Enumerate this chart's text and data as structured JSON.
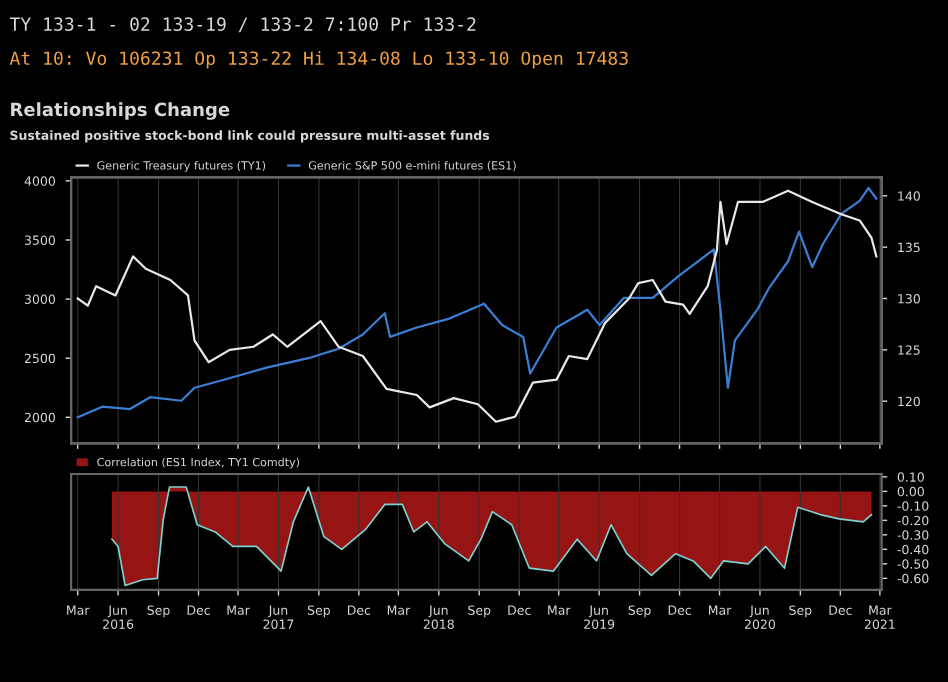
{
  "chart_data": [
    {
      "type": "line",
      "title": "Relationships Change",
      "subtitle": "Sustained positive stock-bond link could pressure multi-asset funds",
      "annotations": [
        "TY 133-1 - 02 133-19 / 133-2 7:100 Pr 133-2",
        "At 10: Vo 106231 Op 133-22 Hi 134-08 Lo 133-10 Open 17483"
      ],
      "xlim": [
        "2016-02-15",
        "2021-03-05"
      ],
      "xticks": [
        "2016-03-01",
        "2016-06-01",
        "2016-09-01",
        "2016-12-01",
        "2017-03-01",
        "2017-06-01",
        "2017-09-01",
        "2017-12-01",
        "2018-03-01",
        "2018-06-01",
        "2018-09-01",
        "2018-12-01",
        "2019-03-01",
        "2019-06-01",
        "2019-09-01",
        "2019-12-01",
        "2020-03-01",
        "2020-06-01",
        "2020-09-01",
        "2020-12-01",
        "2021-03-01"
      ],
      "ylim": [
        1780,
        4030
      ],
      "yticks": [
        2000,
        2500,
        3000,
        3500,
        4000
      ],
      "y2lim": [
        115.9,
        141.8
      ],
      "y2ticks": [
        120,
        125,
        130,
        135,
        140
      ],
      "tick_labels": "y",
      "grid": "x",
      "legend": "top left",
      "series": [
        {
          "name": "Generic Treasury futures (TY1)",
          "color": "#e8e8e8",
          "axis": "y2",
          "x": [
            "2016-03-01",
            "2016-03-24",
            "2016-04-12",
            "2016-05-26",
            "2016-07-05",
            "2016-08-03",
            "2016-09-28",
            "2016-11-07",
            "2016-11-22",
            "2016-12-24",
            "2017-02-10",
            "2017-04-05",
            "2017-05-19",
            "2017-06-21",
            "2017-09-05",
            "2017-10-16",
            "2017-12-10",
            "2018-02-02",
            "2018-04-12",
            "2018-05-11",
            "2018-07-05",
            "2018-08-29",
            "2018-10-09",
            "2018-11-22",
            "2019-01-01",
            "2019-02-24",
            "2019-03-24",
            "2019-05-05",
            "2019-06-14",
            "2019-08-08",
            "2019-08-29",
            "2019-10-01",
            "2019-10-30",
            "2019-12-09",
            "2019-12-24",
            "2020-02-03",
            "2020-02-24",
            "2020-03-03",
            "2020-03-17",
            "2020-04-12",
            "2020-06-07",
            "2020-08-04",
            "2020-09-28",
            "2020-12-03",
            "2021-01-14",
            "2021-02-10",
            "2021-02-21"
          ],
          "values": [
            130,
            129.3,
            131.2,
            130.3,
            134.1,
            132.9,
            131.8,
            130.3,
            125.9,
            123.8,
            125.0,
            125.3,
            126.5,
            125.3,
            127.8,
            125.3,
            124.4,
            121.2,
            120.6,
            119.4,
            120.3,
            119.7,
            118,
            118.5,
            121.8,
            122.1,
            124.4,
            124.1,
            127.6,
            130,
            131.5,
            131.8,
            129.7,
            129.4,
            128.5,
            131.2,
            134.7,
            139.4,
            135.3,
            139.4,
            139.4,
            140.5,
            139.4,
            138.2,
            137.6,
            135.9,
            134.1
          ]
        },
        {
          "name": "Generic S&P 500 e-mini futures (ES1)",
          "color": "#3b7fd4",
          "axis": "y",
          "x": [
            "2016-03-01",
            "2016-04-26",
            "2016-06-28",
            "2016-08-13",
            "2016-10-23",
            "2016-11-22",
            "2017-01-30",
            "2017-05-05",
            "2017-08-08",
            "2017-10-16",
            "2017-12-10",
            "2018-01-29",
            "2018-02-10",
            "2018-04-12",
            "2018-06-21",
            "2018-09-12",
            "2018-10-23",
            "2018-12-10",
            "2018-12-26",
            "2019-02-24",
            "2019-05-05",
            "2019-06-02",
            "2019-07-27",
            "2019-10-01",
            "2019-11-27",
            "2020-02-17",
            "2020-03-03",
            "2020-03-20",
            "2020-04-05",
            "2020-05-26",
            "2020-06-21",
            "2020-08-04",
            "2020-08-29",
            "2020-09-28",
            "2020-10-23",
            "2020-12-03",
            "2021-01-14",
            "2021-02-03",
            "2021-02-21"
          ],
          "values": [
            2000,
            2090,
            2070,
            2170,
            2140,
            2250,
            2320,
            2420,
            2500,
            2580,
            2700,
            2880,
            2680,
            2760,
            2830,
            2960,
            2780,
            2680,
            2370,
            2760,
            2910,
            2780,
            3010,
            3010,
            3190,
            3420,
            2910,
            2250,
            2650,
            2910,
            3090,
            3320,
            3570,
            3270,
            3470,
            3720,
            3830,
            3940,
            3850
          ]
        }
      ]
    },
    {
      "type": "area",
      "xlim": [
        "2016-02-15",
        "2021-03-05"
      ],
      "xticks": [
        {
          "value": "2016-03-01",
          "label": "Mar"
        },
        {
          "value": "2016-06-01",
          "label": "Jun\n2016"
        },
        {
          "value": "2016-09-01",
          "label": "Sep"
        },
        {
          "value": "2016-12-01",
          "label": "Dec"
        },
        {
          "value": "2017-03-01",
          "label": "Mar"
        },
        {
          "value": "2017-06-01",
          "label": "Jun\n2017"
        },
        {
          "value": "2017-09-01",
          "label": "Sep"
        },
        {
          "value": "2017-12-01",
          "label": "Dec"
        },
        {
          "value": "2018-03-01",
          "label": "Mar"
        },
        {
          "value": "2018-06-01",
          "label": "Jun\n2018"
        },
        {
          "value": "2018-09-01",
          "label": "Sep"
        },
        {
          "value": "2018-12-01",
          "label": "Dec"
        },
        {
          "value": "2019-03-01",
          "label": "Mar"
        },
        {
          "value": "2019-06-01",
          "label": "Jun\n2019"
        },
        {
          "value": "2019-09-01",
          "label": "Sep"
        },
        {
          "value": "2019-12-01",
          "label": "Dec"
        },
        {
          "value": "2020-03-01",
          "label": "Mar"
        },
        {
          "value": "2020-06-01",
          "label": "Jun\n2020"
        },
        {
          "value": "2020-09-01",
          "label": "Sep"
        },
        {
          "value": "2020-12-01",
          "label": "Dec"
        },
        {
          "value": "2021-03-01",
          "label": "Mar\n2021"
        }
      ],
      "ylim": [
        -0.68,
        0.12
      ],
      "yticks": [
        {
          "value": 0.1,
          "label": "0.10"
        },
        {
          "value": 0,
          "label": "0.00"
        },
        {
          "value": -0.1,
          "label": "-0.10"
        },
        {
          "value": -0.2,
          "label": "-0.20"
        },
        {
          "value": -0.3,
          "label": "-0.30"
        },
        {
          "value": -0.4,
          "label": "-0.40"
        },
        {
          "value": -0.5,
          "label": "-0.50"
        },
        {
          "value": -0.6,
          "label": "-0.60"
        }
      ],
      "grid": "x",
      "legend": "top left",
      "series": [
        {
          "name": "Correlation (ES1 Index, TY1 Comdty)",
          "color": "#b01818",
          "x": [
            "2016-05-18",
            "2016-06-01",
            "2016-06-17",
            "2016-07-27",
            "2016-08-29",
            "2016-09-12",
            "2016-09-26",
            "2016-11-03",
            "2016-11-28",
            "2017-01-08",
            "2017-02-17",
            "2017-04-12",
            "2017-06-07",
            "2017-07-05",
            "2017-08-08",
            "2017-09-12",
            "2017-10-23",
            "2017-12-17",
            "2018-01-29",
            "2018-03-10",
            "2018-04-05",
            "2018-05-05",
            "2018-06-14",
            "2018-08-08",
            "2018-09-05",
            "2018-10-01",
            "2018-11-14",
            "2018-12-24",
            "2019-02-17",
            "2019-04-12",
            "2019-05-26",
            "2019-06-28",
            "2019-08-03",
            "2019-09-28",
            "2019-11-22",
            "2020-01-01",
            "2020-02-10",
            "2020-03-10",
            "2020-05-05",
            "2020-06-14",
            "2020-07-27",
            "2020-08-26",
            "2020-10-16",
            "2020-11-28",
            "2021-01-22",
            "2021-02-10"
          ],
          "values": [
            -0.33,
            -0.38,
            -0.65,
            -0.61,
            -0.6,
            -0.19,
            0.03,
            0.03,
            -0.23,
            -0.28,
            -0.38,
            -0.38,
            -0.55,
            -0.21,
            0.03,
            -0.31,
            -0.4,
            -0.26,
            -0.09,
            -0.09,
            -0.28,
            -0.21,
            -0.36,
            -0.48,
            -0.33,
            -0.14,
            -0.23,
            -0.53,
            -0.55,
            -0.33,
            -0.48,
            -0.23,
            -0.43,
            -0.58,
            -0.43,
            -0.48,
            -0.6,
            -0.48,
            -0.5,
            -0.38,
            -0.53,
            -0.11,
            -0.16,
            -0.19,
            -0.21,
            -0.16
          ]
        }
      ]
    }
  ]
}
